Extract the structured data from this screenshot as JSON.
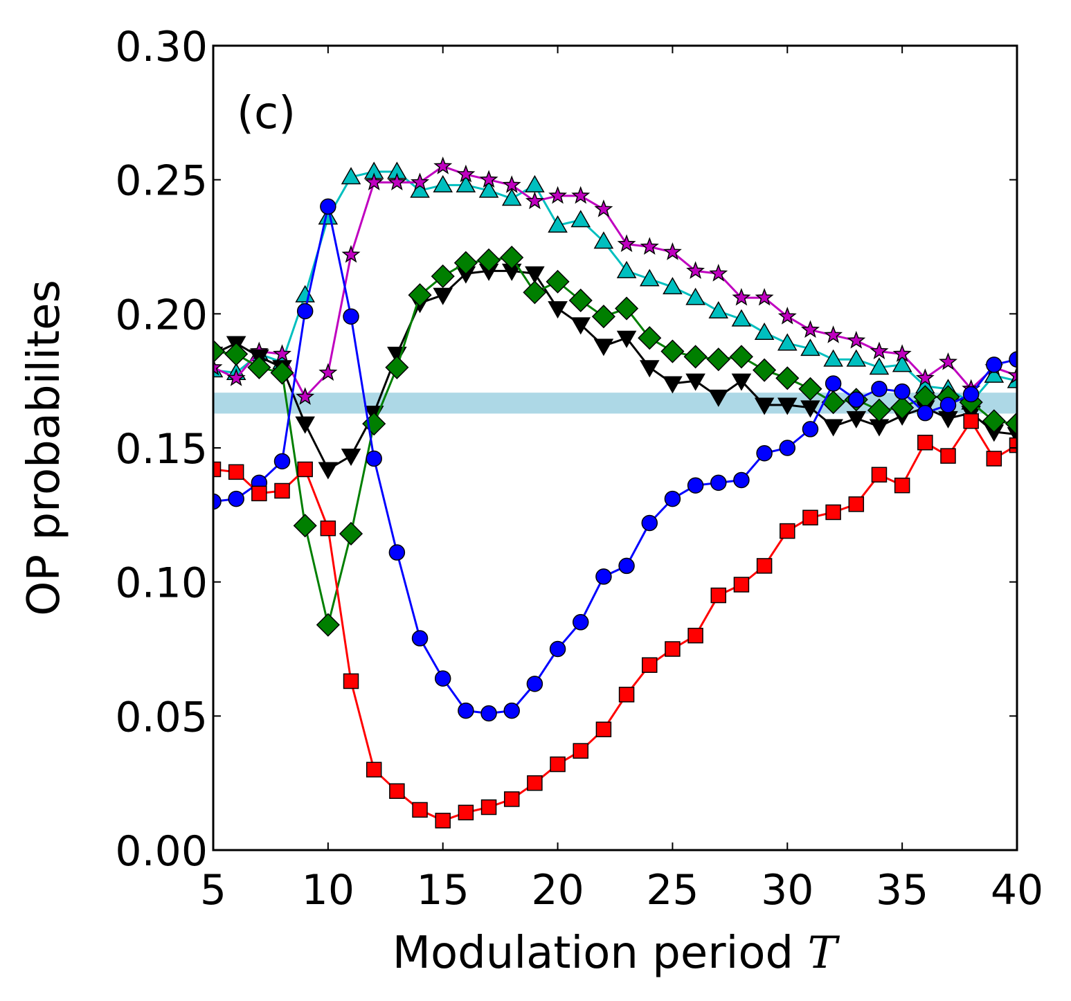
{
  "chart_data": {
    "type": "line",
    "panel_label": "(c)",
    "xlabel": "Modulation period",
    "xlabel_var": "T",
    "ylabel": "OP probabilites",
    "xlim": [
      5,
      40
    ],
    "ylim": [
      0.0,
      0.3
    ],
    "x_ticks": [
      5,
      10,
      15,
      20,
      25,
      30,
      35,
      40
    ],
    "x_tick_labels": [
      "5",
      "10",
      "15",
      "20",
      "25",
      "30",
      "35",
      "40"
    ],
    "y_ticks": [
      0.0,
      0.05,
      0.1,
      0.15,
      0.2,
      0.25,
      0.3
    ],
    "y_tick_labels": [
      "0.00",
      "0.05",
      "0.10",
      "0.15",
      "0.20",
      "0.25",
      "0.30"
    ],
    "grid": false,
    "reference_band": {
      "y_low": 0.1628,
      "y_high": 0.1706,
      "color": "#add8e6"
    },
    "x": [
      5,
      6,
      7,
      8,
      9,
      10,
      11,
      12,
      13,
      14,
      15,
      16,
      17,
      18,
      19,
      20,
      21,
      22,
      23,
      24,
      25,
      26,
      27,
      28,
      29,
      30,
      31,
      32,
      33,
      34,
      35,
      36,
      37,
      38,
      39,
      40
    ],
    "series": [
      {
        "name": "cyan-triangle-up",
        "color": "#00bfbf",
        "marker": "triangle-up",
        "values": [
          0.179,
          0.178,
          0.185,
          0.182,
          0.207,
          0.236,
          0.251,
          0.253,
          0.253,
          0.246,
          0.248,
          0.248,
          0.246,
          0.243,
          0.248,
          0.233,
          0.235,
          0.227,
          0.216,
          0.213,
          0.21,
          0.206,
          0.201,
          0.198,
          0.193,
          0.189,
          0.187,
          0.183,
          0.183,
          0.18,
          0.181,
          0.173,
          0.172,
          0.167,
          0.177,
          0.175
        ]
      },
      {
        "name": "magenta-star",
        "color": "#bf00bf",
        "marker": "star",
        "values": [
          0.18,
          0.176,
          0.186,
          0.185,
          0.169,
          0.178,
          0.222,
          0.249,
          0.249,
          0.249,
          0.255,
          0.252,
          0.25,
          0.248,
          0.242,
          0.244,
          0.244,
          0.239,
          0.226,
          0.225,
          0.223,
          0.216,
          0.215,
          0.206,
          0.206,
          0.199,
          0.194,
          0.192,
          0.19,
          0.186,
          0.185,
          0.176,
          0.182,
          0.172,
          0.18,
          0.177
        ]
      },
      {
        "name": "black-triangle-down",
        "color": "#000000",
        "marker": "triangle-down",
        "values": [
          0.185,
          0.189,
          0.184,
          0.18,
          0.159,
          0.142,
          0.147,
          0.163,
          0.185,
          0.204,
          0.207,
          0.215,
          0.216,
          0.216,
          0.215,
          0.202,
          0.196,
          0.188,
          0.191,
          0.18,
          0.174,
          0.175,
          0.169,
          0.175,
          0.166,
          0.166,
          0.165,
          0.158,
          0.161,
          0.158,
          0.162,
          0.165,
          0.161,
          0.163,
          0.156,
          0.155
        ]
      },
      {
        "name": "green-diamond",
        "color": "#007f00",
        "marker": "diamond",
        "values": [
          0.186,
          0.185,
          0.18,
          0.178,
          0.121,
          0.084,
          0.118,
          0.159,
          0.18,
          0.207,
          0.214,
          0.219,
          0.22,
          0.221,
          0.208,
          0.212,
          0.205,
          0.199,
          0.202,
          0.191,
          0.186,
          0.184,
          0.183,
          0.184,
          0.179,
          0.176,
          0.172,
          0.167,
          0.168,
          0.164,
          0.165,
          0.169,
          0.169,
          0.167,
          0.16,
          0.159
        ]
      },
      {
        "name": "blue-circle",
        "color": "#0000ff",
        "marker": "circle",
        "values": [
          0.13,
          0.131,
          0.137,
          0.145,
          0.201,
          0.24,
          0.199,
          0.146,
          0.111,
          0.079,
          0.064,
          0.052,
          0.051,
          0.052,
          0.062,
          0.075,
          0.085,
          0.102,
          0.106,
          0.122,
          0.131,
          0.136,
          0.137,
          0.138,
          0.148,
          0.15,
          0.157,
          0.174,
          0.168,
          0.172,
          0.171,
          0.163,
          0.166,
          0.17,
          0.181,
          0.183
        ]
      },
      {
        "name": "red-square",
        "color": "#ff0000",
        "marker": "square",
        "values": [
          0.142,
          0.141,
          0.133,
          0.134,
          0.142,
          0.12,
          0.063,
          0.03,
          0.022,
          0.015,
          0.011,
          0.014,
          0.016,
          0.019,
          0.025,
          0.032,
          0.037,
          0.045,
          0.058,
          0.069,
          0.075,
          0.08,
          0.095,
          0.099,
          0.106,
          0.119,
          0.124,
          0.126,
          0.129,
          0.14,
          0.136,
          0.152,
          0.147,
          0.16,
          0.146,
          0.151
        ]
      }
    ]
  }
}
